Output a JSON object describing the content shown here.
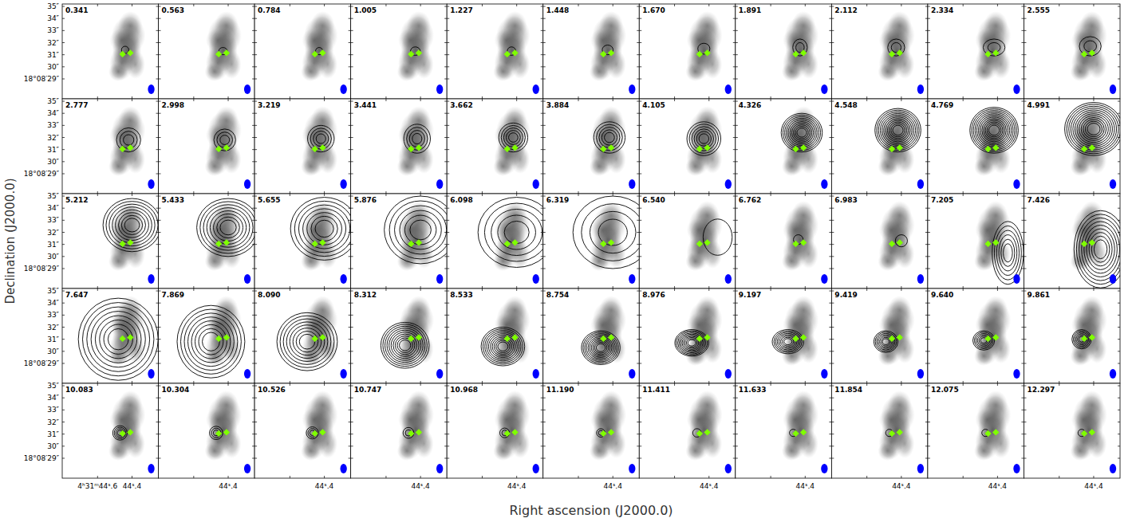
{
  "chart_data": {
    "type": "channel_map",
    "x_label": "Right ascension (J2000.0)",
    "y_label": "Declination (J2000.0)",
    "xlim": [
      44.805,
      44.247
    ],
    "ylim": [
      27.35,
      35.2
    ],
    "xticks": [
      {
        "value": 44.6,
        "label": "4ʰ31ᵐ44ˢ.6"
      },
      {
        "value": 44.4,
        "label": "44ˢ.4"
      }
    ],
    "yticks": [
      {
        "value": 35,
        "label": "35″"
      },
      {
        "value": 34,
        "label": "34″"
      },
      {
        "value": 33,
        "label": "33″"
      },
      {
        "value": 32,
        "label": "32″"
      },
      {
        "value": 31,
        "label": "31″"
      },
      {
        "value": 30,
        "label": "30″"
      },
      {
        "value": 29,
        "label": "18°08′29″"
      }
    ],
    "beam": {
      "major": 0.8,
      "minor": 0.55,
      "color": "#0000ff"
    },
    "sources": [
      {
        "ra": 44.455,
        "dec": 31.05
      },
      {
        "ra": 44.41,
        "dec": 31.15
      }
    ],
    "source_color": "#7fff00",
    "continuum": [
      {
        "ra": 44.43,
        "dec": 31.4,
        "a": 0.6,
        "b": 0.9,
        "peak": 0.9
      },
      {
        "ra": 44.42,
        "dec": 32.6,
        "a": 0.7,
        "b": 0.8,
        "peak": 0.6
      },
      {
        "ra": 44.41,
        "dec": 33.4,
        "a": 0.5,
        "b": 0.6,
        "peak": 0.45
      },
      {
        "ra": 44.46,
        "dec": 30.3,
        "a": 0.5,
        "b": 0.7,
        "peak": 0.55
      },
      {
        "ra": 44.38,
        "dec": 30.2,
        "a": 0.4,
        "b": 0.6,
        "peak": 0.45
      },
      {
        "ra": 44.48,
        "dec": 29.6,
        "a": 0.4,
        "b": 0.4,
        "peak": 0.5
      },
      {
        "ra": 44.46,
        "dec": 32.2,
        "a": 0.5,
        "b": 0.5,
        "peak": 0.4
      }
    ],
    "channels": [
      {
        "label": "0.341",
        "contours": [
          {
            "ra": 44.44,
            "dec": 31.4,
            "a": 0.3,
            "b": 0.3,
            "levels": 1
          }
        ]
      },
      {
        "label": "0.563",
        "contours": [
          {
            "ra": 44.43,
            "dec": 31.3,
            "a": 0.35,
            "b": 0.3,
            "levels": 1
          }
        ]
      },
      {
        "label": "0.784",
        "contours": [
          {
            "ra": 44.43,
            "dec": 31.3,
            "a": 0.3,
            "b": 0.3,
            "levels": 1
          }
        ]
      },
      {
        "label": "1.005",
        "contours": [
          {
            "ra": 44.43,
            "dec": 31.3,
            "a": 0.4,
            "b": 0.35,
            "levels": 1
          }
        ]
      },
      {
        "label": "1.227",
        "contours": [
          {
            "ra": 44.43,
            "dec": 31.3,
            "a": 0.35,
            "b": 0.35,
            "levels": 1
          }
        ]
      },
      {
        "label": "1.448",
        "contours": [
          {
            "ra": 44.43,
            "dec": 31.4,
            "a": 0.45,
            "b": 0.4,
            "levels": 1
          }
        ]
      },
      {
        "label": "1.670",
        "contours": [
          {
            "ra": 44.43,
            "dec": 31.5,
            "a": 0.5,
            "b": 0.45,
            "levels": 1
          }
        ]
      },
      {
        "label": "1.891",
        "contours": [
          {
            "ra": 44.43,
            "dec": 31.6,
            "a": 0.6,
            "b": 0.7,
            "levels": 2
          }
        ]
      },
      {
        "label": "2.112",
        "contours": [
          {
            "ra": 44.43,
            "dec": 31.6,
            "a": 0.7,
            "b": 0.7,
            "levels": 2
          }
        ]
      },
      {
        "label": "2.334",
        "contours": [
          {
            "ra": 44.42,
            "dec": 31.6,
            "a": 0.9,
            "b": 0.7,
            "levels": 2
          }
        ]
      },
      {
        "label": "2.555",
        "contours": [
          {
            "ra": 44.42,
            "dec": 31.7,
            "a": 0.9,
            "b": 0.8,
            "levels": 2
          }
        ]
      },
      {
        "label": "2.777",
        "contours": [
          {
            "ra": 44.42,
            "dec": 31.8,
            "a": 1.0,
            "b": 1.0,
            "levels": 3
          }
        ]
      },
      {
        "label": "2.998",
        "contours": [
          {
            "ra": 44.42,
            "dec": 31.8,
            "a": 0.9,
            "b": 0.9,
            "levels": 3
          }
        ]
      },
      {
        "label": "3.219",
        "contours": [
          {
            "ra": 44.42,
            "dec": 31.9,
            "a": 1.1,
            "b": 1.1,
            "levels": 4
          }
        ]
      },
      {
        "label": "3.441",
        "contours": [
          {
            "ra": 44.42,
            "dec": 31.9,
            "a": 1.1,
            "b": 1.2,
            "levels": 4
          }
        ]
      },
      {
        "label": "3.662",
        "contours": [
          {
            "ra": 44.42,
            "dec": 32.0,
            "a": 1.2,
            "b": 1.2,
            "levels": 5
          }
        ]
      },
      {
        "label": "3.884",
        "contours": [
          {
            "ra": 44.42,
            "dec": 32.0,
            "a": 1.3,
            "b": 1.3,
            "levels": 5
          }
        ]
      },
      {
        "label": "4.105",
        "contours": [
          {
            "ra": 44.43,
            "dec": 31.9,
            "a": 1.4,
            "b": 1.4,
            "levels": 6
          }
        ]
      },
      {
        "label": "4.326",
        "contours": [
          {
            "ra": 44.42,
            "dec": 32.4,
            "a": 1.7,
            "b": 1.6,
            "levels": 10
          }
        ]
      },
      {
        "label": "4.548",
        "contours": [
          {
            "ra": 44.42,
            "dec": 32.6,
            "a": 1.9,
            "b": 1.8,
            "levels": 11
          }
        ]
      },
      {
        "label": "4.769",
        "contours": [
          {
            "ra": 44.42,
            "dec": 32.6,
            "a": 2.0,
            "b": 1.9,
            "levels": 12
          }
        ]
      },
      {
        "label": "4.991",
        "contours": [
          {
            "ra": 44.4,
            "dec": 32.7,
            "a": 2.4,
            "b": 2.2,
            "levels": 12
          }
        ]
      },
      {
        "label": "5.212",
        "contours": [
          {
            "ra": 44.4,
            "dec": 32.6,
            "a": 2.4,
            "b": 2.2,
            "levels": 8
          }
        ]
      },
      {
        "label": "5.433",
        "contours": [
          {
            "ra": 44.4,
            "dec": 32.4,
            "a": 2.6,
            "b": 2.4,
            "levels": 8
          }
        ]
      },
      {
        "label": "5.655",
        "contours": [
          {
            "ra": 44.4,
            "dec": 32.3,
            "a": 2.8,
            "b": 2.6,
            "levels": 7
          }
        ]
      },
      {
        "label": "5.876",
        "contours": [
          {
            "ra": 44.4,
            "dec": 32.2,
            "a": 3.0,
            "b": 2.8,
            "levels": 6
          }
        ]
      },
      {
        "label": "6.098",
        "contours": [
          {
            "ra": 44.4,
            "dec": 32.0,
            "a": 3.2,
            "b": 2.9,
            "levels": 5
          }
        ]
      },
      {
        "label": "6.319",
        "contours": [
          {
            "ra": 44.4,
            "dec": 32.0,
            "a": 3.3,
            "b": 3.0,
            "levels": 4
          }
        ]
      },
      {
        "label": "6.540",
        "contours": [
          {
            "ra": 44.35,
            "dec": 31.6,
            "a": 1.2,
            "b": 1.5,
            "levels": 1
          }
        ]
      },
      {
        "label": "6.762",
        "contours": [
          {
            "ra": 44.44,
            "dec": 31.4,
            "a": 0.4,
            "b": 0.4,
            "levels": 1
          }
        ]
      },
      {
        "label": "6.983",
        "contours": [
          {
            "ra": 44.4,
            "dec": 31.3,
            "a": 0.5,
            "b": 0.5,
            "levels": 1
          }
        ]
      },
      {
        "label": "7.205",
        "contours": [
          {
            "ra": 44.34,
            "dec": 30.3,
            "a": 1.3,
            "b": 2.6,
            "levels": 6
          }
        ]
      },
      {
        "label": "7.426",
        "contours": [
          {
            "ra": 44.36,
            "dec": 30.6,
            "a": 2.2,
            "b": 3.2,
            "levels": 9
          }
        ]
      },
      {
        "label": "7.647",
        "contours": [
          {
            "ra": 44.48,
            "dec": 31.0,
            "a": 3.3,
            "b": 3.4,
            "levels": 8
          }
        ]
      },
      {
        "label": "7.869",
        "contours": [
          {
            "ra": 44.5,
            "dec": 30.8,
            "a": 2.8,
            "b": 3.0,
            "levels": 8
          }
        ]
      },
      {
        "label": "8.090",
        "contours": [
          {
            "ra": 44.5,
            "dec": 30.8,
            "a": 2.5,
            "b": 2.4,
            "levels": 8
          }
        ]
      },
      {
        "label": "8.312",
        "contours": [
          {
            "ra": 44.49,
            "dec": 30.5,
            "a": 2.0,
            "b": 1.9,
            "levels": 10
          }
        ]
      },
      {
        "label": "8.533",
        "contours": [
          {
            "ra": 44.48,
            "dec": 30.4,
            "a": 1.8,
            "b": 1.6,
            "levels": 10
          }
        ]
      },
      {
        "label": "8.754",
        "contours": [
          {
            "ra": 44.47,
            "dec": 30.3,
            "a": 1.6,
            "b": 1.4,
            "levels": 10
          }
        ]
      },
      {
        "label": "8.976",
        "contours": [
          {
            "ra": 44.5,
            "dec": 30.7,
            "a": 1.4,
            "b": 1.1,
            "levels": 10
          }
        ]
      },
      {
        "label": "9.197",
        "contours": [
          {
            "ra": 44.5,
            "dec": 30.8,
            "a": 1.3,
            "b": 1.0,
            "levels": 8
          }
        ]
      },
      {
        "label": "9.419",
        "contours": [
          {
            "ra": 44.49,
            "dec": 30.8,
            "a": 1.0,
            "b": 0.9,
            "levels": 7
          }
        ]
      },
      {
        "label": "9.640",
        "contours": [
          {
            "ra": 44.48,
            "dec": 30.9,
            "a": 0.9,
            "b": 0.8,
            "levels": 6
          }
        ]
      },
      {
        "label": "9.861",
        "contours": [
          {
            "ra": 44.47,
            "dec": 31.0,
            "a": 0.8,
            "b": 0.8,
            "levels": 6
          }
        ]
      },
      {
        "label": "10.083",
        "contours": [
          {
            "ra": 44.47,
            "dec": 31.1,
            "a": 0.6,
            "b": 0.6,
            "levels": 4
          }
        ]
      },
      {
        "label": "10.304",
        "contours": [
          {
            "ra": 44.47,
            "dec": 31.1,
            "a": 0.55,
            "b": 0.55,
            "levels": 3
          }
        ]
      },
      {
        "label": "10.526",
        "contours": [
          {
            "ra": 44.47,
            "dec": 31.1,
            "a": 0.5,
            "b": 0.5,
            "levels": 3
          }
        ]
      },
      {
        "label": "10.747",
        "contours": [
          {
            "ra": 44.47,
            "dec": 31.1,
            "a": 0.45,
            "b": 0.45,
            "levels": 2
          }
        ]
      },
      {
        "label": "10.968",
        "contours": [
          {
            "ra": 44.47,
            "dec": 31.1,
            "a": 0.4,
            "b": 0.4,
            "levels": 2
          }
        ]
      },
      {
        "label": "11.190",
        "contours": [
          {
            "ra": 44.47,
            "dec": 31.1,
            "a": 0.35,
            "b": 0.35,
            "levels": 2
          }
        ]
      },
      {
        "label": "11.411",
        "contours": [
          {
            "ra": 44.47,
            "dec": 31.1,
            "a": 0.35,
            "b": 0.35,
            "levels": 1
          }
        ]
      },
      {
        "label": "11.633",
        "contours": [
          {
            "ra": 44.47,
            "dec": 31.1,
            "a": 0.3,
            "b": 0.3,
            "levels": 1
          }
        ]
      },
      {
        "label": "11.854",
        "contours": [
          {
            "ra": 44.47,
            "dec": 31.1,
            "a": 0.3,
            "b": 0.3,
            "levels": 1
          }
        ]
      },
      {
        "label": "12.075",
        "contours": [
          {
            "ra": 44.47,
            "dec": 31.1,
            "a": 0.3,
            "b": 0.3,
            "levels": 1
          }
        ]
      },
      {
        "label": "12.297",
        "contours": [
          {
            "ra": 44.47,
            "dec": 31.1,
            "a": 0.3,
            "b": 0.3,
            "levels": 1
          }
        ]
      }
    ]
  }
}
